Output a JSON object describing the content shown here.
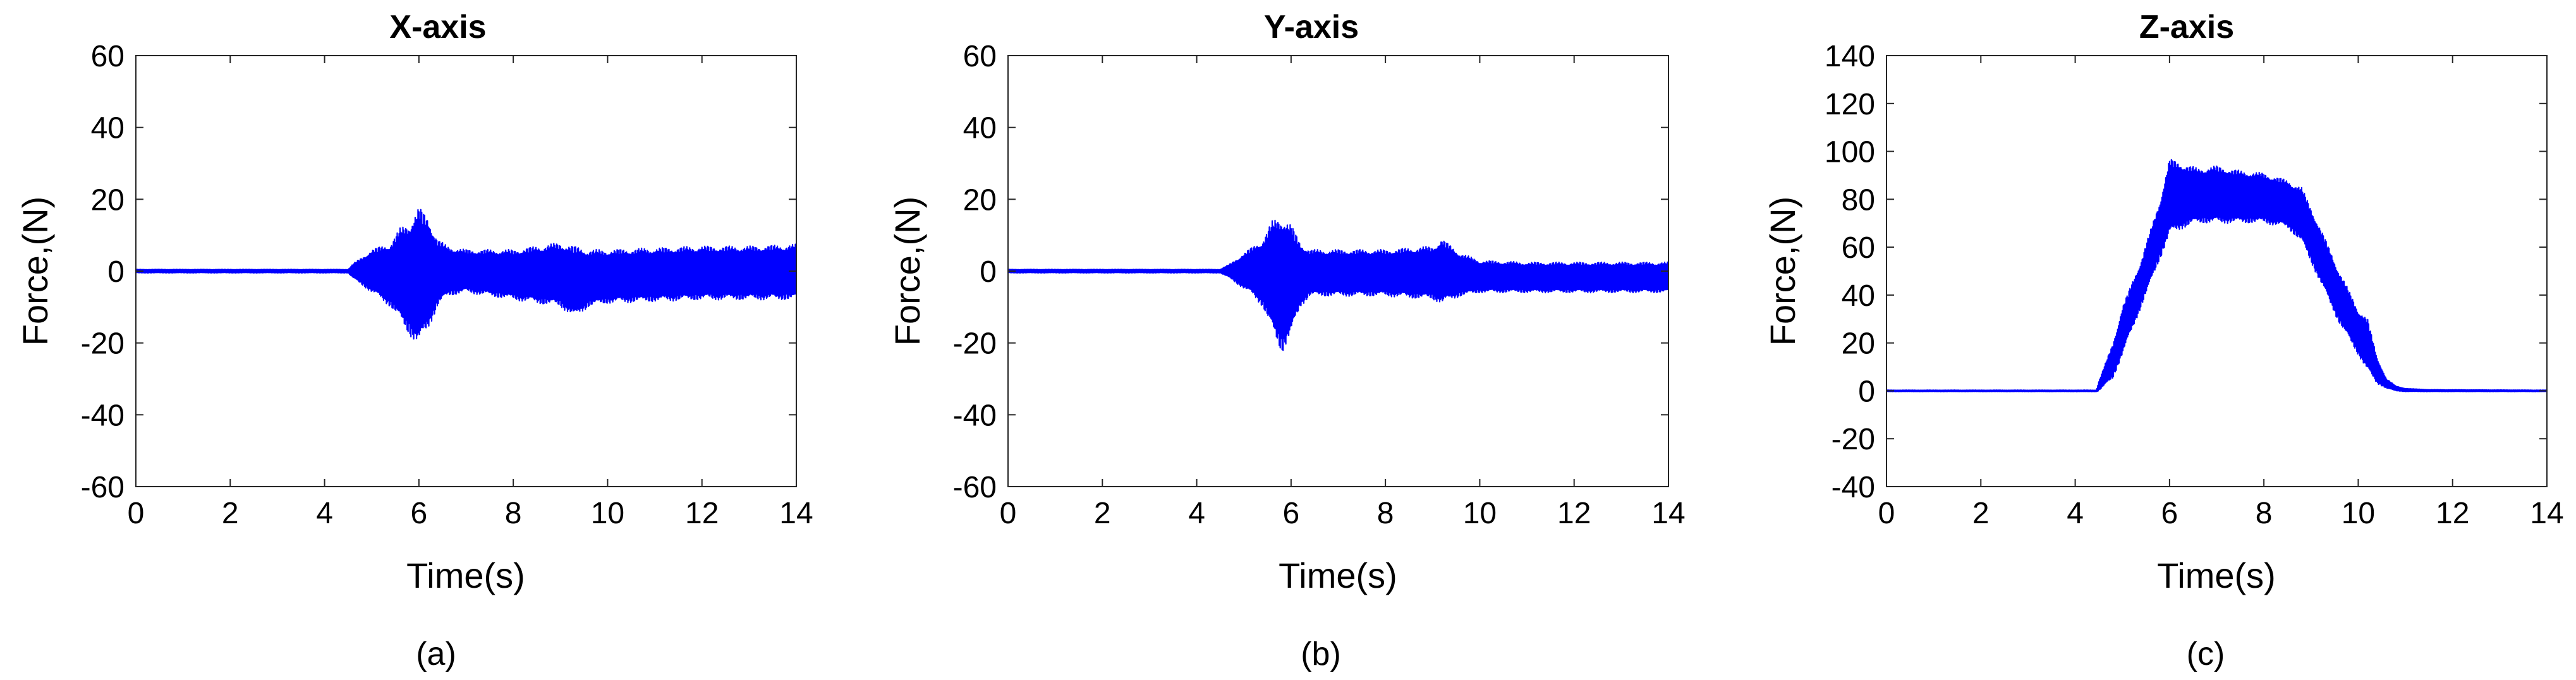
{
  "chart_data": [
    {
      "type": "line",
      "panel_label": "(a)",
      "title": "X-axis",
      "xlabel": "Time(s)",
      "ylabel": "Force,(N)",
      "xlim": [
        0,
        14
      ],
      "ylim": [
        -60,
        60
      ],
      "xticks": [
        0,
        2,
        4,
        6,
        8,
        10,
        12,
        14
      ],
      "yticks": [
        -60,
        -40,
        -20,
        0,
        20,
        40,
        60
      ],
      "grid": false,
      "line_color": "#0000ff",
      "envelope": {
        "t": [
          0,
          4.5,
          4.6,
          4.8,
          5.0,
          5.2,
          5.4,
          5.6,
          5.8,
          6.0,
          6.2,
          6.4,
          6.6,
          7.0,
          7.5,
          8.0,
          8.5,
          9.0,
          9.3,
          9.6,
          10.0,
          11.0,
          12.0,
          13.0,
          14.0
        ],
        "upper": [
          0.5,
          0.5,
          2,
          4,
          6,
          7,
          8,
          12,
          14,
          18,
          15,
          9,
          7,
          6,
          6,
          6,
          7,
          8,
          7,
          6,
          6,
          6.5,
          7,
          7,
          7.5
        ],
        "lower": [
          -0.5,
          -0.5,
          -2,
          -4,
          -6,
          -8,
          -10,
          -14,
          -18,
          -21,
          -16,
          -10,
          -7,
          -6,
          -7,
          -8,
          -9,
          -10,
          -13,
          -10,
          -9,
          -8.5,
          -8,
          -8,
          -8
        ]
      }
    },
    {
      "type": "line",
      "panel_label": "(b)",
      "title": "Y-axis",
      "xlabel": "Time(s)",
      "ylabel": "Force,(N)",
      "xlim": [
        0,
        14
      ],
      "ylim": [
        -60,
        60
      ],
      "xticks": [
        0,
        2,
        4,
        6,
        8,
        10,
        12,
        14
      ],
      "yticks": [
        -60,
        -40,
        -20,
        0,
        20,
        40,
        60
      ],
      "grid": false,
      "line_color": "#0000ff",
      "envelope": {
        "t": [
          0,
          4.5,
          4.7,
          5.0,
          5.2,
          5.4,
          5.6,
          5.8,
          6.0,
          6.2,
          6.4,
          7.0,
          8.0,
          9.0,
          9.2,
          9.6,
          10.0,
          11.0,
          12.0,
          13.0,
          14.0
        ],
        "upper": [
          0.5,
          0.5,
          2,
          5,
          7,
          9,
          14,
          16,
          13,
          8,
          6,
          6,
          6,
          7,
          9,
          5,
          3,
          2.5,
          2.5,
          2.5,
          2.5
        ],
        "lower": [
          -0.5,
          -0.5,
          -2,
          -5,
          -7,
          -10,
          -17,
          -23,
          -18,
          -10,
          -7,
          -7,
          -7,
          -8,
          -9,
          -7,
          -6,
          -6,
          -6,
          -6,
          -6
        ]
      }
    },
    {
      "type": "line",
      "panel_label": "(c)",
      "title": "Z-axis",
      "xlabel": "Time(s)",
      "ylabel": "Force,(N)",
      "xlim": [
        0,
        14
      ],
      "ylim": [
        -40,
        140
      ],
      "xticks": [
        0,
        2,
        4,
        6,
        8,
        10,
        12,
        14
      ],
      "yticks": [
        -40,
        -20,
        0,
        20,
        40,
        60,
        80,
        100,
        120,
        140
      ],
      "grid": false,
      "line_color": "#0000ff",
      "envelope": {
        "t": [
          0,
          4.45,
          4.5,
          4.8,
          5.0,
          5.4,
          5.8,
          6.0,
          6.3,
          6.6,
          7.0,
          7.5,
          8.0,
          8.5,
          8.8,
          9.2,
          9.6,
          10.0,
          10.2,
          10.4,
          10.6,
          10.8,
          11.0,
          11.5,
          14.0
        ],
        "upper": [
          0.3,
          0.3,
          4,
          20,
          35,
          55,
          80,
          97,
          95,
          93,
          94,
          92,
          91,
          88,
          85,
          68,
          50,
          34,
          30,
          14,
          5,
          2,
          1,
          0.5,
          0.3
        ],
        "lower": [
          -0.3,
          -0.3,
          0,
          5,
          15,
          35,
          55,
          65,
          68,
          70,
          70,
          70,
          70,
          68,
          62,
          45,
          28,
          15,
          8,
          3,
          1,
          0,
          -0.3,
          -0.3,
          -0.3
        ]
      }
    }
  ]
}
